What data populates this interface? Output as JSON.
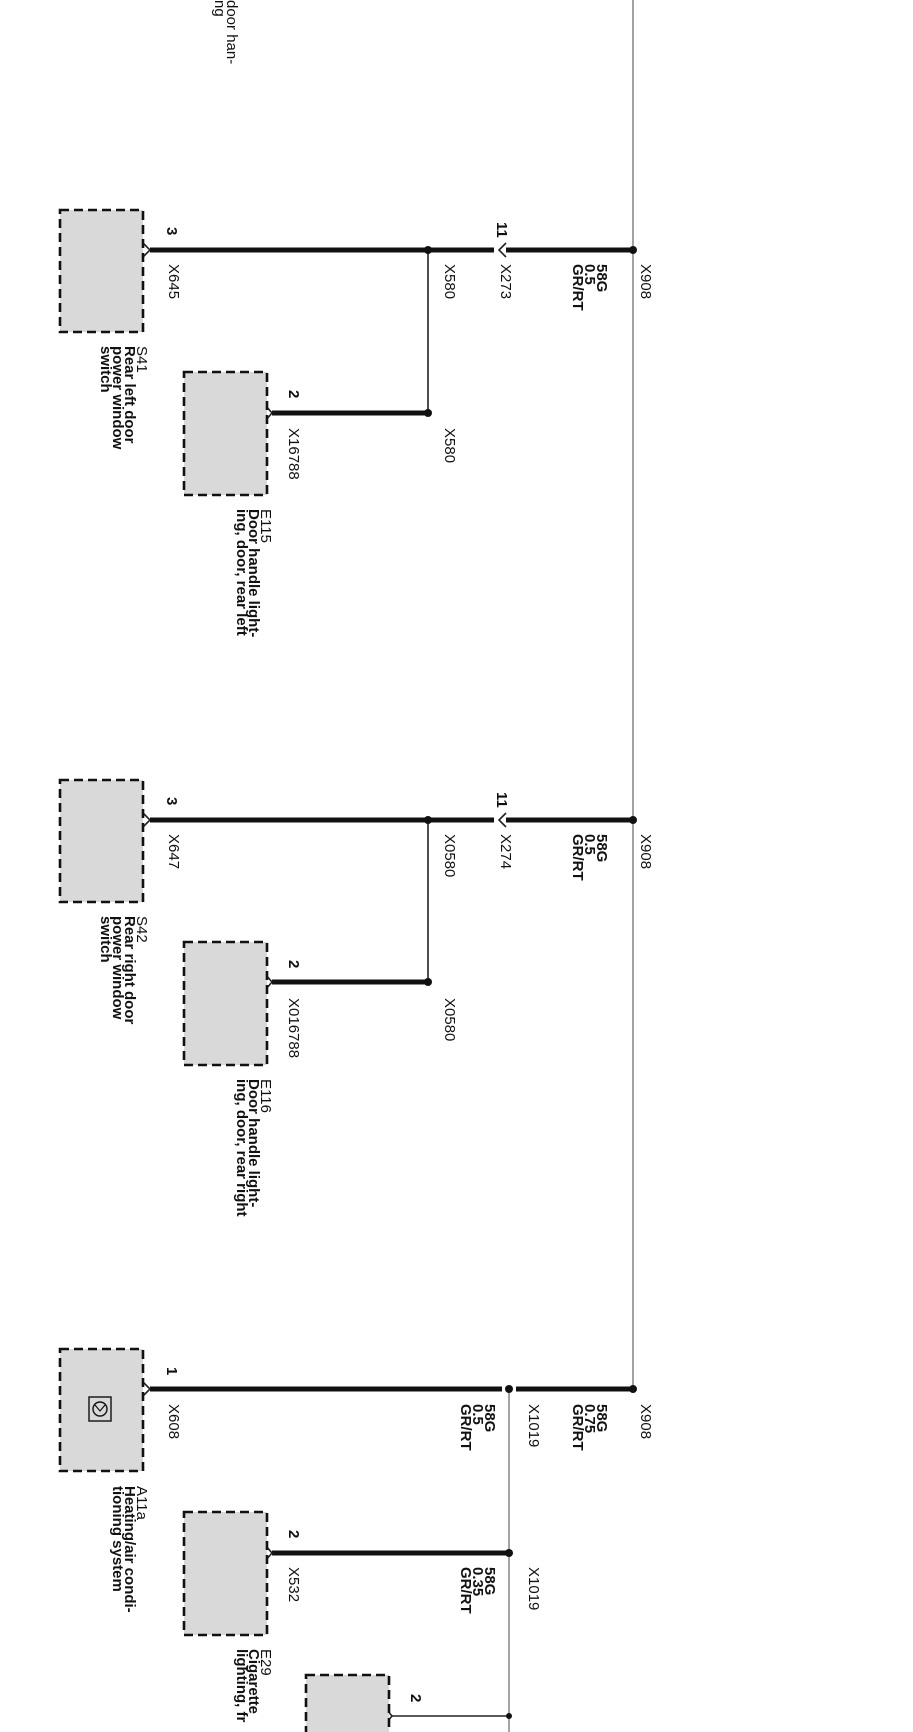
{
  "top_label": {
    "lines": [
      "door han-",
      "ng"
    ]
  },
  "groups": [
    {
      "bus_connector": "X908",
      "wire": {
        "color_code": "58G",
        "size": "0.5",
        "color": "GR/RT"
      },
      "connector_mid": "X273",
      "connector_mid_pin": "11",
      "splice": "X580",
      "main_component": {
        "connector": "X645",
        "pin": "3",
        "id": "S41",
        "desc": [
          "Rear left door",
          "power window",
          "switch"
        ]
      },
      "branch_component": {
        "splice": "X580",
        "connector": "X16788",
        "pin": "2",
        "id": "E115",
        "desc": [
          "Door handle light-",
          "ing, door, rear left"
        ]
      }
    },
    {
      "bus_connector": "X908",
      "wire": {
        "color_code": "58G",
        "size": "0.5",
        "color": "GR/RT"
      },
      "connector_mid": "X274",
      "connector_mid_pin": "11",
      "splice": "X0580",
      "main_component": {
        "connector": "X647",
        "pin": "3",
        "id": "S42",
        "desc": [
          "Rear right door",
          "power window",
          "switch"
        ]
      },
      "branch_component": {
        "splice": "X0580",
        "connector": "X016788",
        "pin": "2",
        "id": "E116",
        "desc": [
          "Door handle light-",
          "ing, door, rear right"
        ]
      }
    },
    {
      "bus_connector": "X908",
      "wire": {
        "color_code": "58G",
        "size": "0.75",
        "color": "GR/RT"
      },
      "splice": "X1019",
      "wire2": {
        "color_code": "58G",
        "size": "0.5",
        "color": "GR/RT"
      },
      "main_component": {
        "connector": "X608",
        "pin": "1",
        "id": "A11a",
        "desc": [
          "Heating/air condi-",
          "tioning system"
        ]
      },
      "branch_component": {
        "splice": "X1019",
        "wire": {
          "color_code": "58G",
          "size": "0.35",
          "color": "GR/RT"
        },
        "connector": "X532",
        "pin": "2",
        "id": "E29",
        "desc": [
          "Cigarette",
          "lighting, fr"
        ]
      }
    }
  ],
  "bottom_partial": {
    "pin": "2"
  }
}
